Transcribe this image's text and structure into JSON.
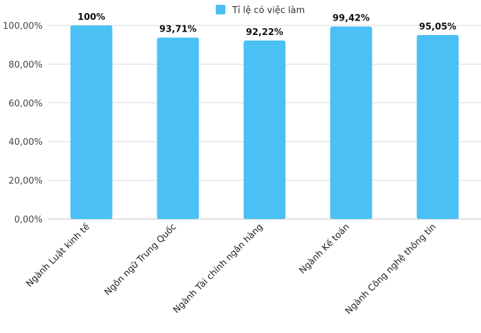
{
  "chart_data": {
    "type": "bar",
    "title": "",
    "xlabel": "",
    "ylabel": "",
    "categories": [
      "Ngành Luật kinh tế",
      "Ngôn ngữ Trung Quốc",
      "Ngành Tài chính ngân hàng",
      "Ngành Kế toán",
      "Ngành Công nghệ thông tin"
    ],
    "series": [
      {
        "name": "Tỉ lệ có việc làm",
        "values": [
          100,
          93.71,
          92.22,
          99.42,
          95.05
        ],
        "data_labels": [
          "100%",
          "93,71%",
          "92,22%",
          "99,42%",
          "95,05%"
        ],
        "color": "#4bc0f5"
      }
    ],
    "ylim": [
      0,
      100
    ],
    "yticks": [
      0,
      20,
      40,
      60,
      80,
      100
    ],
    "ytick_labels": [
      "0,00%",
      "20,00%",
      "40,00%",
      "60,00%",
      "80,00%",
      "100,00%"
    ],
    "grid": true,
    "legend_position": "top-center",
    "gridline_color": "#d9d9d9"
  }
}
